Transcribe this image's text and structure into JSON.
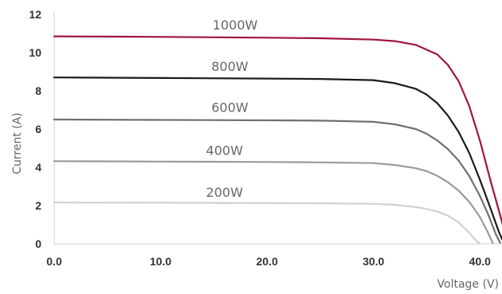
{
  "chart_data": {
    "type": "line",
    "xlabel": "Voltage (V)",
    "ylabel": "Current (A)",
    "xlim": [
      0,
      42
    ],
    "ylim": [
      0,
      12
    ],
    "x_ticks": [
      0,
      10,
      20,
      30,
      40
    ],
    "x_tick_labels": [
      "0.0",
      "10.0",
      "20.0",
      "30.0",
      "40.0"
    ],
    "y_ticks": [
      0,
      2,
      4,
      6,
      8,
      10,
      12
    ],
    "y_tick_labels": [
      "0",
      "2",
      "4",
      "6",
      "8",
      "10",
      "12"
    ],
    "grid": false,
    "legend": "inline labels above curves",
    "series": [
      {
        "name": "1000W",
        "color": "#a0143c",
        "x": [
          0,
          10,
          20,
          25,
          30,
          32,
          34,
          36,
          37,
          38,
          39,
          40,
          41,
          42,
          42.4
        ],
        "y": [
          10.85,
          10.82,
          10.78,
          10.75,
          10.68,
          10.6,
          10.4,
          9.9,
          9.35,
          8.5,
          7.2,
          5.4,
          3.3,
          1.3,
          0.45
        ]
      },
      {
        "name": "800W",
        "color": "#1a1a1a",
        "x": [
          0,
          10,
          20,
          25,
          30,
          32,
          34,
          35,
          36,
          37,
          38,
          39,
          40,
          41,
          41.8,
          42.2
        ],
        "y": [
          8.7,
          8.67,
          8.64,
          8.62,
          8.56,
          8.4,
          8.1,
          7.8,
          7.35,
          6.7,
          5.85,
          4.75,
          3.35,
          1.85,
          0.6,
          0.1
        ]
      },
      {
        "name": "600W",
        "color": "#707070",
        "x": [
          0,
          10,
          20,
          25,
          30,
          32,
          34,
          35,
          36,
          37,
          38,
          39,
          40,
          40.8,
          41.5,
          41.9
        ],
        "y": [
          6.5,
          6.48,
          6.46,
          6.44,
          6.38,
          6.25,
          6.0,
          5.75,
          5.4,
          4.95,
          4.35,
          3.55,
          2.5,
          1.5,
          0.5,
          0.05
        ]
      },
      {
        "name": "400W",
        "color": "#9a9a9a",
        "x": [
          0,
          10,
          20,
          25,
          30,
          32,
          34,
          35,
          36,
          37,
          38,
          39,
          40,
          40.7,
          41.2
        ],
        "y": [
          4.32,
          4.3,
          4.28,
          4.26,
          4.22,
          4.12,
          3.95,
          3.8,
          3.55,
          3.22,
          2.78,
          2.2,
          1.4,
          0.65,
          0.05
        ]
      },
      {
        "name": "200W",
        "color": "#d0d0d0",
        "x": [
          0,
          10,
          20,
          25,
          30,
          32,
          34,
          35,
          36,
          37,
          38,
          39,
          39.5,
          40
        ],
        "y": [
          2.16,
          2.15,
          2.13,
          2.12,
          2.09,
          2.04,
          1.92,
          1.82,
          1.68,
          1.47,
          1.12,
          0.58,
          0.25,
          0.0
        ]
      }
    ],
    "series_labels": [
      {
        "text": "1000W",
        "x": 17.0,
        "y": 11.45
      },
      {
        "text": "800W",
        "x": 16.5,
        "y": 9.3
      },
      {
        "text": "600W",
        "x": 16.5,
        "y": 7.15
      },
      {
        "text": "400W",
        "x": 16.0,
        "y": 4.9
      },
      {
        "text": "200W",
        "x": 16.0,
        "y": 2.7
      }
    ]
  }
}
